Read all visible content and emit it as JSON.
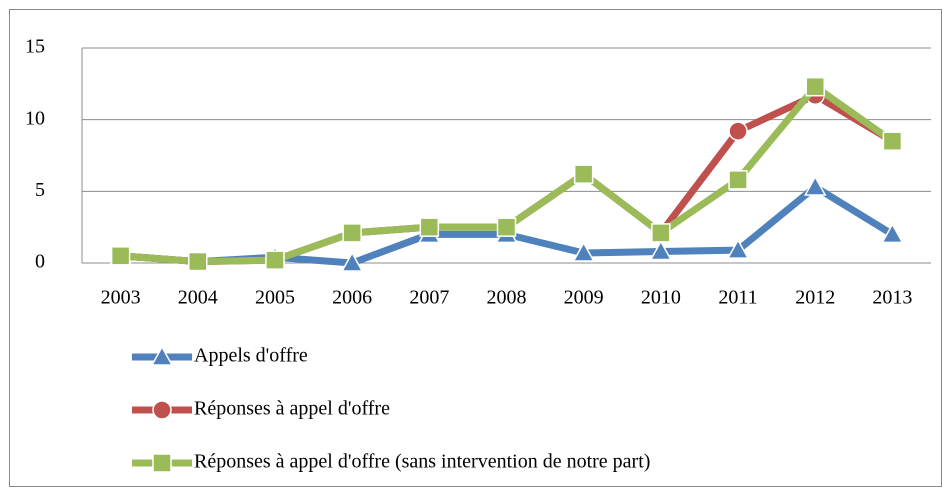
{
  "chart_data": {
    "type": "line",
    "categories": [
      "2003",
      "2004",
      "2005",
      "2006",
      "2007",
      "2008",
      "2009",
      "2010",
      "2011",
      "2012",
      "2013"
    ],
    "series": [
      {
        "name": "Appels d'offre",
        "color": "#4f81bd",
        "marker": "triangle",
        "values": [
          0.5,
          0.1,
          0.4,
          0,
          2,
          2,
          0.7,
          0.8,
          0.9,
          5.3,
          2
        ]
      },
      {
        "name": "Réponses à appel d'offre",
        "color": "#c0504d",
        "marker": "circle",
        "values": [
          0.5,
          0.1,
          0.2,
          2.1,
          2.5,
          2.5,
          6.2,
          2.1,
          9.2,
          11.7,
          8.5
        ]
      },
      {
        "name": "Réponses à appel d'offre (sans intervention de notre part)",
        "color": "#9bbb59",
        "marker": "square",
        "values": [
          0.5,
          0.1,
          0.2,
          2.1,
          2.5,
          2.5,
          6.2,
          2.1,
          5.8,
          12.3,
          8.5
        ]
      }
    ],
    "ylim": [
      0,
      15
    ],
    "yticks": [
      0,
      5,
      10,
      15
    ],
    "grid": true,
    "legend": "bottom"
  }
}
